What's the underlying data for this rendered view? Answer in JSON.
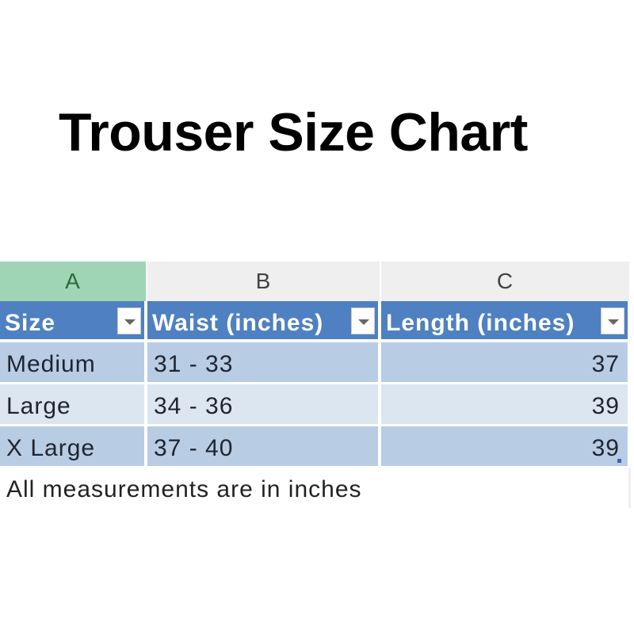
{
  "title": "Trouser Size Chart",
  "sheet": {
    "column_letters": [
      "A",
      "B",
      "C"
    ],
    "selected_column": "A",
    "headers": [
      "Size",
      "Waist (inches)",
      "Length (inches)"
    ],
    "rows": [
      {
        "size": "Medium",
        "waist": "31 - 33",
        "length": "37"
      },
      {
        "size": "Large",
        "waist": "34 - 36",
        "length": "39"
      },
      {
        "size": "X Large",
        "waist": "37 - 40",
        "length": "39"
      }
    ],
    "note": "All measurements are in inches",
    "colors": {
      "header": "#4f80c1",
      "band_dark": "#b8cce4",
      "band_light": "#dce6f1",
      "selected_column": "#9fd5b4"
    }
  }
}
